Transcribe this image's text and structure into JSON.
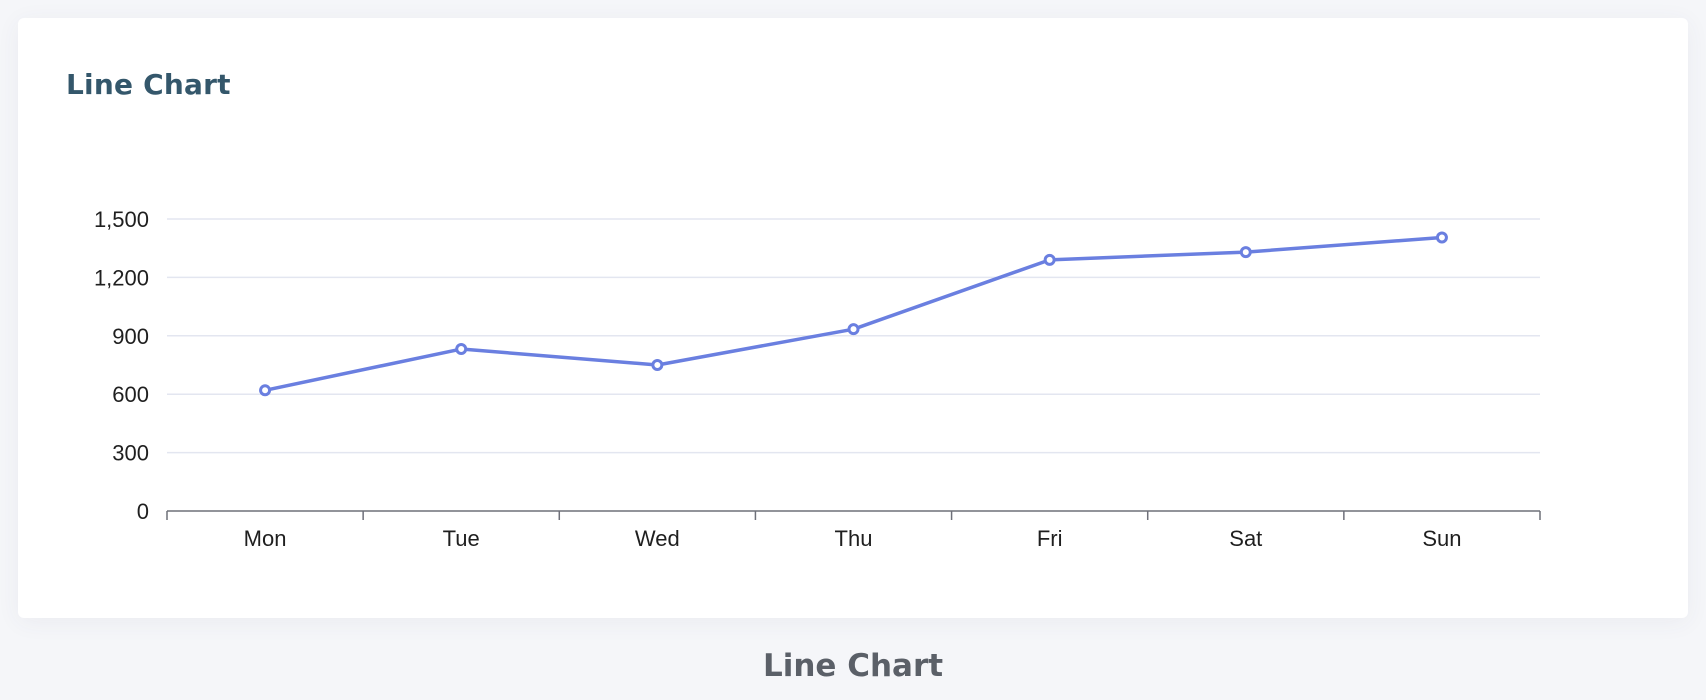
{
  "card": {
    "title": "Line Chart"
  },
  "caption": "Line Chart",
  "chart_data": {
    "type": "line",
    "categories": [
      "Mon",
      "Tue",
      "Wed",
      "Thu",
      "Fri",
      "Sat",
      "Sun"
    ],
    "series": [
      {
        "values": [
          620,
          832,
          750,
          934,
          1290,
          1330,
          1405
        ],
        "color": "#6a7fe0"
      }
    ],
    "y_ticks": [
      0,
      300,
      600,
      900,
      1200,
      1500
    ],
    "y_tick_labels": [
      "0",
      "300",
      "600",
      "900",
      "1,200",
      "1,500"
    ],
    "ylim": [
      0,
      1500
    ],
    "grid": true,
    "legend": "none",
    "colors": {
      "grid": "#e3e6f0",
      "axis": "#6e7079",
      "tick_text": "#1f1f1f"
    }
  }
}
